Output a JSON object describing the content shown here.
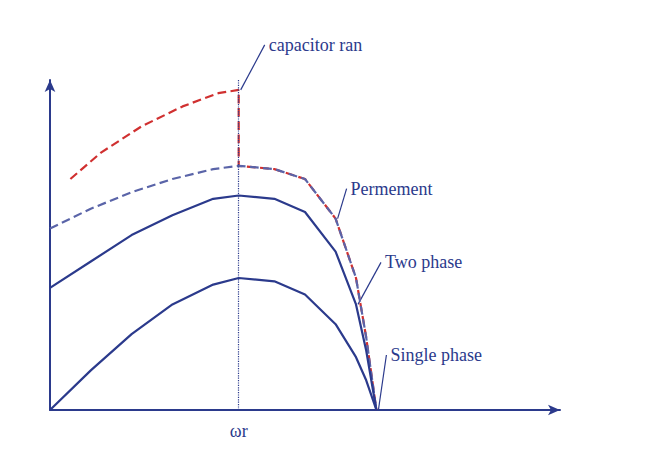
{
  "chart_data": {
    "type": "line",
    "xlim": [
      0,
      1
    ],
    "ylim": [
      0,
      1
    ],
    "xticks": [
      {
        "value": 0.37,
        "label": "ωr"
      }
    ],
    "yticks": [],
    "tick_labels": "x",
    "grid": true,
    "series": [
      {
        "name": "capacitor ran",
        "color": "#d03030",
        "line_style": "dashed",
        "x": [
          0.04,
          0.1,
          0.18,
          0.26,
          0.33,
          0.37,
          0.37,
          0.44,
          0.5,
          0.56,
          0.6,
          0.62,
          0.64
        ],
        "values": [
          0.7,
          0.78,
          0.86,
          0.92,
          0.96,
          0.97,
          0.74,
          0.73,
          0.7,
          0.58,
          0.4,
          0.22,
          0
        ]
      },
      {
        "name": "Permement",
        "color": "#5a64a8",
        "line_style": "dashed",
        "x": [
          0,
          0.08,
          0.16,
          0.24,
          0.32,
          0.37,
          0.44,
          0.5,
          0.56,
          0.6,
          0.62,
          0.64
        ],
        "values": [
          0.55,
          0.61,
          0.66,
          0.7,
          0.73,
          0.74,
          0.73,
          0.7,
          0.58,
          0.4,
          0.22,
          0
        ]
      },
      {
        "name": "Two phase",
        "color": "#2b3a8c",
        "line_style": "solid",
        "x": [
          0,
          0.08,
          0.16,
          0.24,
          0.32,
          0.37,
          0.44,
          0.5,
          0.56,
          0.6,
          0.62,
          0.64
        ],
        "values": [
          0.37,
          0.45,
          0.53,
          0.59,
          0.64,
          0.65,
          0.64,
          0.6,
          0.48,
          0.32,
          0.18,
          0
        ]
      },
      {
        "name": "Single phase",
        "color": "#2b3a8c",
        "line_style": "solid",
        "x": [
          0,
          0.08,
          0.16,
          0.24,
          0.32,
          0.37,
          0.44,
          0.5,
          0.56,
          0.6,
          0.62,
          0.64
        ],
        "values": [
          0,
          0.12,
          0.23,
          0.32,
          0.38,
          0.4,
          0.39,
          0.35,
          0.26,
          0.16,
          0.09,
          0
        ]
      }
    ]
  }
}
